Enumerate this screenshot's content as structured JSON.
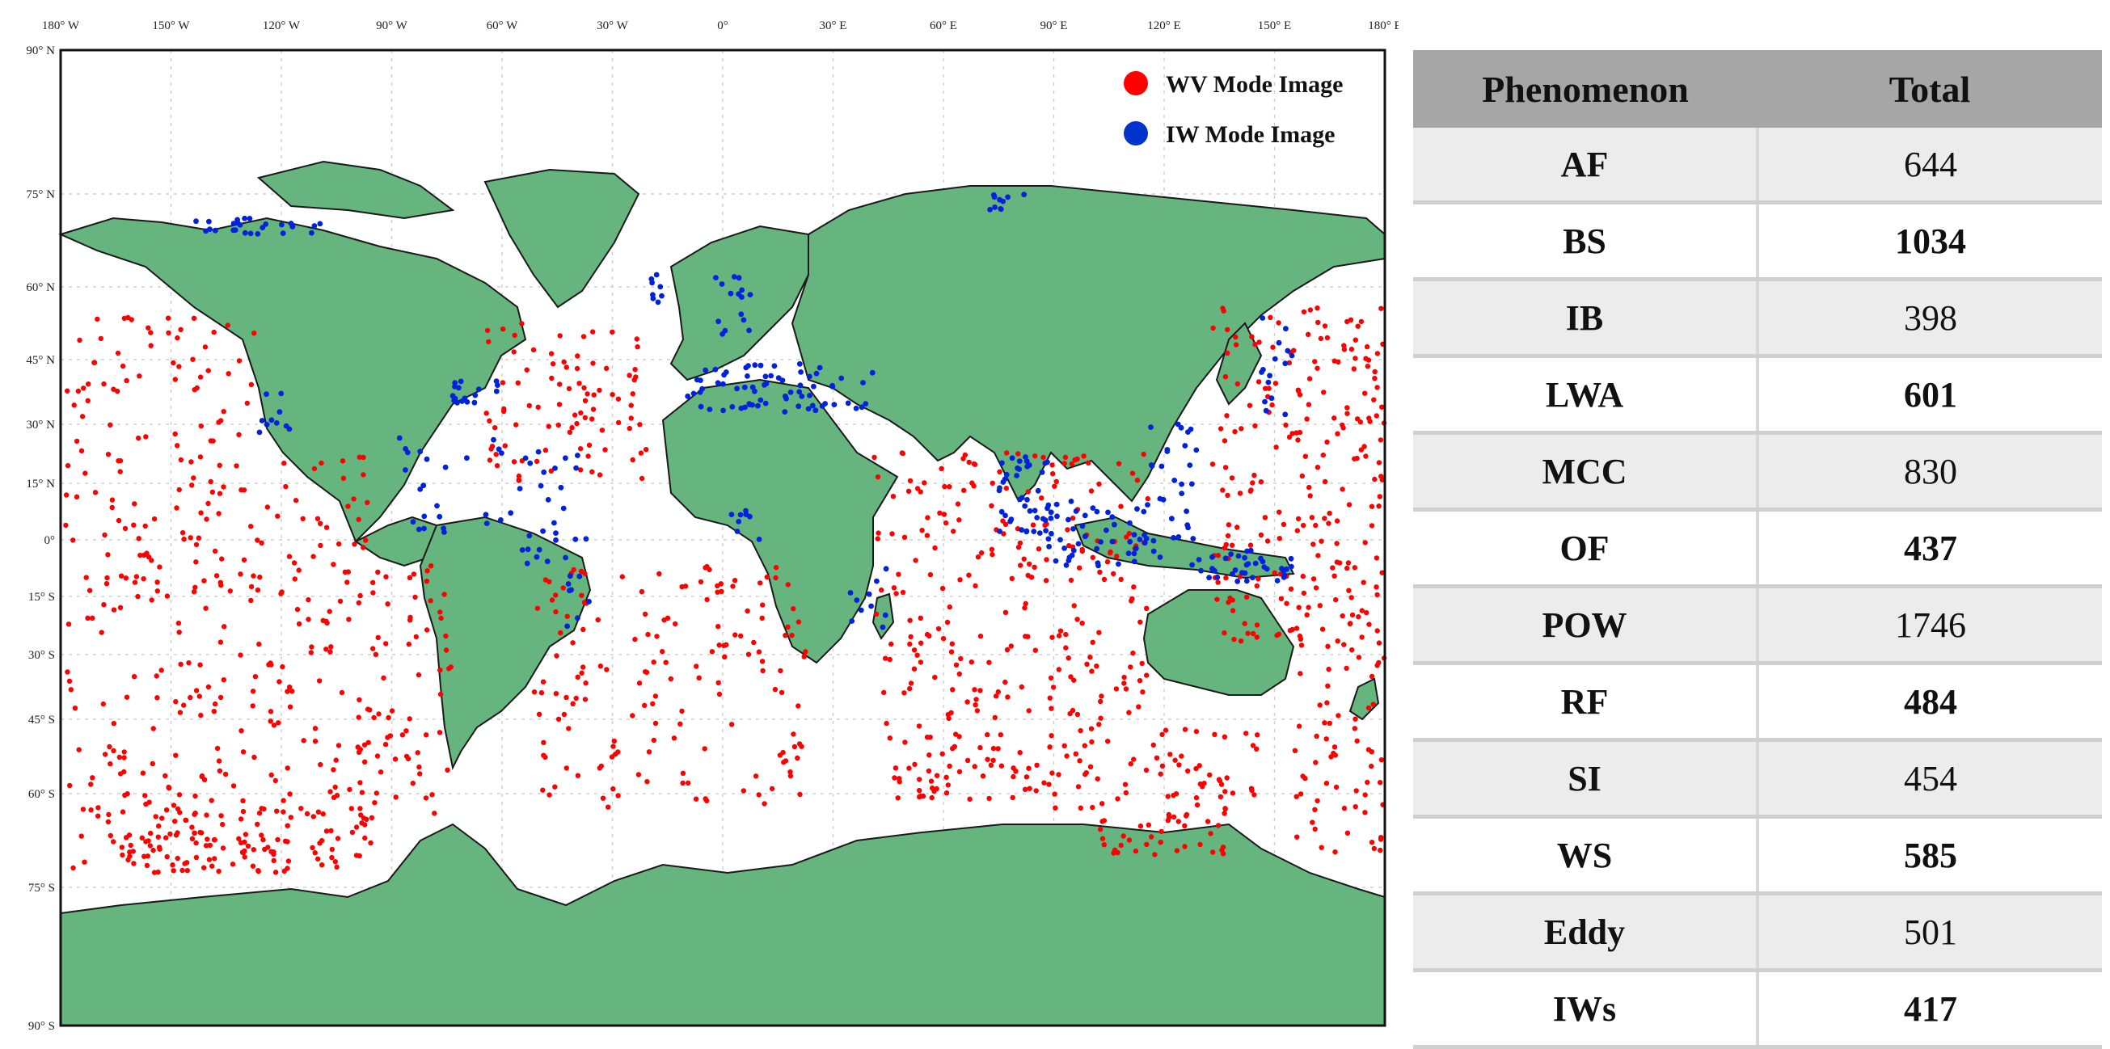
{
  "map": {
    "lon_ticks": [
      "180° W",
      "150° W",
      "120° W",
      "90° W",
      "60° W",
      "30° W",
      "0°",
      "30° E",
      "60° E",
      "90° E",
      "120° E",
      "150° E",
      "180° E"
    ],
    "lat_ticks": [
      "90° N",
      "75° N",
      "60° N",
      "45° N",
      "30° N",
      "15° N",
      "0°",
      "15° S",
      "30° S",
      "45° S",
      "60° S",
      "75° S",
      "90° S"
    ],
    "legend": [
      {
        "label": "WV Mode Image",
        "color": "#ff0000"
      },
      {
        "label": "IW Mode Image",
        "color": "#0033cc"
      }
    ],
    "land_color": "#66b47e",
    "wv_color": "#ff0000",
    "iw_color": "#0022dd"
  },
  "table": {
    "headers": [
      "Phenomenon",
      "Total"
    ],
    "rows": [
      {
        "phenomenon": "AF",
        "total": "644"
      },
      {
        "phenomenon": "BS",
        "total": "1034"
      },
      {
        "phenomenon": "IB",
        "total": "398"
      },
      {
        "phenomenon": "LWA",
        "total": "601"
      },
      {
        "phenomenon": "MCC",
        "total": "830"
      },
      {
        "phenomenon": "OF",
        "total": "437"
      },
      {
        "phenomenon": "POW",
        "total": "1746"
      },
      {
        "phenomenon": "RF",
        "total": "484"
      },
      {
        "phenomenon": "SI",
        "total": "454"
      },
      {
        "phenomenon": "WS",
        "total": "585"
      },
      {
        "phenomenon": "Eddy",
        "total": "501"
      },
      {
        "phenomenon": "IWs",
        "total": "417"
      }
    ]
  }
}
